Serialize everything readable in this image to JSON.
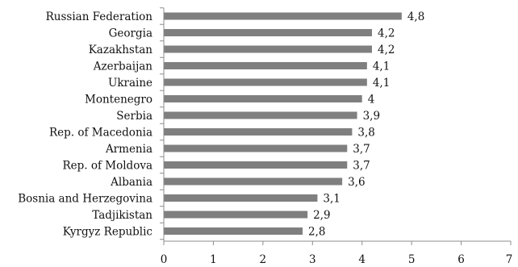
{
  "chart_data": {
    "type": "bar",
    "orientation": "horizontal",
    "categories": [
      "Russian Federation",
      "Georgia",
      "Kazakhstan",
      "Azerbaijan",
      "Ukraine",
      "Montenegro",
      "Serbia",
      "Rep. of Macedonia",
      "Armenia",
      "Rep. of Moldova",
      "Albania",
      "Bosnia and Herzegovina",
      "Tadjikistan",
      "Kyrgyz Republic"
    ],
    "values": [
      4.8,
      4.2,
      4.2,
      4.1,
      4.1,
      4.0,
      3.9,
      3.8,
      3.7,
      3.7,
      3.6,
      3.1,
      2.9,
      2.8
    ],
    "value_labels": [
      "4,8",
      "4,2",
      "4,2",
      "4,1",
      "4,1",
      "4",
      "3,9",
      "3,8",
      "3,7",
      "3,7",
      "3,6",
      "3,1",
      "2,9",
      "2,8"
    ],
    "xlim": [
      0,
      7
    ],
    "x_ticks": [
      "0",
      "1",
      "2",
      "3",
      "4",
      "5",
      "6",
      "7"
    ],
    "grid": false,
    "colors": {
      "bar": "#7f7f7f",
      "axis": "#8c8c8c",
      "text": "#111111"
    }
  }
}
